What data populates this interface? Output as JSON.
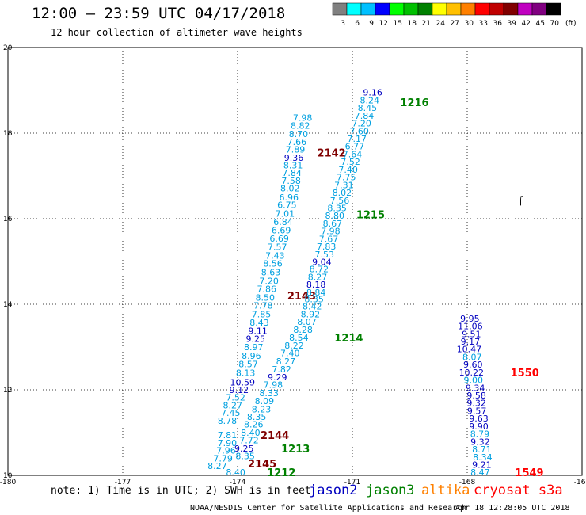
{
  "header": {
    "title": "12:00 – 23:59 UTC 04/17/2018",
    "subtitle": "12 hour collection of altimeter wave heights"
  },
  "colorbar": {
    "colors": [
      "#808080",
      "#00ffff",
      "#00c0ff",
      "#0000ff",
      "#00ff00",
      "#00c000",
      "#008000",
      "#ffff00",
      "#ffc000",
      "#ff8000",
      "#ff0000",
      "#c00000",
      "#800000",
      "#c000c0",
      "#800080",
      "#000000"
    ],
    "labels": [
      "3",
      "6",
      "9",
      "12",
      "15",
      "18",
      "21",
      "24",
      "27",
      "30",
      "33",
      "36",
      "39",
      "42",
      "45",
      "70",
      "(ft)"
    ]
  },
  "footer": {
    "note": "note: 1) Time is in UTC; 2) SWH is in feet",
    "credit": "NOAA/NESDIS Center for Satellite Applications and Research",
    "timestamp": "Apr 18 12:28:05 UTC 2018",
    "missions": [
      {
        "name": "jason2",
        "color": "#0000c0"
      },
      {
        "name": "jason3",
        "color": "#008000"
      },
      {
        "name": "altika",
        "color": "#ff8000"
      },
      {
        "name": "cryosat s3a",
        "color": "#ff0000"
      }
    ]
  },
  "chart_data": {
    "type": "scatter",
    "xlim": [
      -180,
      -165
    ],
    "ylim": [
      10,
      20
    ],
    "xticks": [
      "-180",
      "-177",
      "-174",
      "-171",
      "-168",
      "-165"
    ],
    "yticks": [
      "10",
      "12",
      "14",
      "16",
      "18",
      "20"
    ],
    "grid": true,
    "tracks": [
      {
        "name": "2145-2142",
        "points": [
          {
            "lon": -174.53,
            "lat": 10.22,
            "swh": "8.27",
            "color": "#00a0e0"
          },
          {
            "lon": -174.38,
            "lat": 10.4,
            "swh": "7.79",
            "color": "#00a0e0"
          },
          {
            "lon": -174.3,
            "lat": 10.58,
            "swh": "7.96",
            "color": "#00a0e0"
          },
          {
            "lon": -174.27,
            "lat": 10.76,
            "swh": "7.90",
            "color": "#00a0e0"
          },
          {
            "lon": -174.27,
            "lat": 10.94,
            "swh": "7.81",
            "color": "#00a0e0"
          },
          {
            "lon": -174.27,
            "lat": 11.28,
            "swh": "8.78",
            "color": "#00a0e0"
          },
          {
            "lon": -174.18,
            "lat": 11.46,
            "swh": "7.45",
            "color": "#00a0e0"
          },
          {
            "lon": -174.13,
            "lat": 11.64,
            "swh": "8.27",
            "color": "#00a0e0"
          },
          {
            "lon": -174.05,
            "lat": 11.82,
            "swh": "7.52",
            "color": "#00a0e0"
          },
          {
            "lon": -173.96,
            "lat": 12.0,
            "swh": "9.12",
            "color": "#0000c0"
          },
          {
            "lon": -173.87,
            "lat": 12.18,
            "swh": "10.59",
            "color": "#0000c0"
          },
          {
            "lon": -173.79,
            "lat": 12.4,
            "swh": "8.13",
            "color": "#00a0e0"
          },
          {
            "lon": -173.72,
            "lat": 12.6,
            "swh": "8.57",
            "color": "#00a0e0"
          },
          {
            "lon": -173.64,
            "lat": 12.8,
            "swh": "8.96",
            "color": "#00a0e0"
          },
          {
            "lon": -173.58,
            "lat": 13.0,
            "swh": "8.97",
            "color": "#00a0e0"
          },
          {
            "lon": -173.53,
            "lat": 13.19,
            "swh": "9.25",
            "color": "#0000c0"
          },
          {
            "lon": -173.47,
            "lat": 13.38,
            "swh": "9.11",
            "color": "#0000c0"
          },
          {
            "lon": -173.43,
            "lat": 13.57,
            "swh": "8.43",
            "color": "#00a0e0"
          },
          {
            "lon": -173.38,
            "lat": 13.77,
            "swh": "7.85",
            "color": "#00a0e0"
          },
          {
            "lon": -173.33,
            "lat": 13.97,
            "swh": "7.78",
            "color": "#00a0e0"
          },
          {
            "lon": -173.28,
            "lat": 14.16,
            "swh": "8.50",
            "color": "#00a0e0"
          },
          {
            "lon": -173.24,
            "lat": 14.36,
            "swh": "7.86",
            "color": "#00a0e0"
          },
          {
            "lon": -173.18,
            "lat": 14.55,
            "swh": "7.20",
            "color": "#00a0e0"
          },
          {
            "lon": -173.13,
            "lat": 14.75,
            "swh": "8.63",
            "color": "#00a0e0"
          },
          {
            "lon": -173.08,
            "lat": 14.95,
            "swh": "8.56",
            "color": "#00a0e0"
          },
          {
            "lon": -173.02,
            "lat": 15.14,
            "swh": "7.43",
            "color": "#00a0e0"
          },
          {
            "lon": -172.96,
            "lat": 15.34,
            "swh": "7.57",
            "color": "#00a0e0"
          },
          {
            "lon": -172.91,
            "lat": 15.54,
            "swh": "6.69",
            "color": "#00a0e0"
          },
          {
            "lon": -172.86,
            "lat": 15.73,
            "swh": "6.69",
            "color": "#00a0e0"
          },
          {
            "lon": -172.81,
            "lat": 15.93,
            "swh": "6.84",
            "color": "#00a0e0"
          },
          {
            "lon": -172.76,
            "lat": 16.12,
            "swh": "7.01",
            "color": "#00a0e0"
          },
          {
            "lon": -172.71,
            "lat": 16.32,
            "swh": "6.75",
            "color": "#00a0e0"
          },
          {
            "lon": -172.66,
            "lat": 16.5,
            "swh": "6.96",
            "color": "#00a0e0"
          },
          {
            "lon": -172.63,
            "lat": 16.71,
            "swh": "8.02",
            "color": "#00a0e0"
          },
          {
            "lon": -172.6,
            "lat": 16.89,
            "swh": "7.58",
            "color": "#00a0e0"
          },
          {
            "lon": -172.58,
            "lat": 17.07,
            "swh": "7.84",
            "color": "#00a0e0"
          },
          {
            "lon": -172.55,
            "lat": 17.25,
            "swh": "8.31",
            "color": "#00a0e0"
          },
          {
            "lon": -172.53,
            "lat": 17.43,
            "swh": "9.36",
            "color": "#0000c0"
          },
          {
            "lon": -172.49,
            "lat": 17.62,
            "swh": "7.89",
            "color": "#00a0e0"
          },
          {
            "lon": -172.45,
            "lat": 17.8,
            "swh": "7.66",
            "color": "#00a0e0"
          },
          {
            "lon": -172.41,
            "lat": 17.98,
            "swh": "8.70",
            "color": "#00a0e0"
          },
          {
            "lon": -172.36,
            "lat": 18.18,
            "swh": "8.82",
            "color": "#00a0e0"
          },
          {
            "lon": -172.3,
            "lat": 18.36,
            "swh": "7.98",
            "color": "#00a0e0"
          }
        ],
        "time_labels": [
          {
            "lon": -173.73,
            "lat": 10.28,
            "text": "2145",
            "color": "#800000"
          },
          {
            "lon": -173.4,
            "lat": 10.94,
            "text": "2144",
            "color": "#800000"
          },
          {
            "lon": -172.7,
            "lat": 14.2,
            "text": "2143",
            "color": "#800000"
          },
          {
            "lon": -171.92,
            "lat": 17.55,
            "text": "2142",
            "color": "#800000"
          }
        ]
      },
      {
        "name": "1212-1216",
        "points": [
          {
            "lon": -174.05,
            "lat": 10.07,
            "swh": "8.40",
            "color": "#00a0e0"
          },
          {
            "lon": -173.8,
            "lat": 10.45,
            "swh": "8.35",
            "color": "#00a0e0"
          },
          {
            "lon": -173.83,
            "lat": 10.63,
            "swh": "9.25",
            "color": "#0000c0"
          },
          {
            "lon": -173.7,
            "lat": 10.82,
            "swh": "7.72",
            "color": "#00a0e0"
          },
          {
            "lon": -173.66,
            "lat": 11.0,
            "swh": "8.40",
            "color": "#00a0e0"
          },
          {
            "lon": -173.58,
            "lat": 11.19,
            "swh": "8.26",
            "color": "#00a0e0"
          },
          {
            "lon": -173.5,
            "lat": 11.37,
            "swh": "8.35",
            "color": "#00a0e0"
          },
          {
            "lon": -173.38,
            "lat": 11.55,
            "swh": "8.23",
            "color": "#00a0e0"
          },
          {
            "lon": -173.3,
            "lat": 11.74,
            "swh": "8.09",
            "color": "#00a0e0"
          },
          {
            "lon": -173.18,
            "lat": 11.93,
            "swh": "8.33",
            "color": "#00a0e0"
          },
          {
            "lon": -173.07,
            "lat": 12.12,
            "swh": "7.98",
            "color": "#00a0e0"
          },
          {
            "lon": -172.96,
            "lat": 12.3,
            "swh": "9.29",
            "color": "#0000c0"
          },
          {
            "lon": -172.85,
            "lat": 12.48,
            "swh": "7.82",
            "color": "#00a0e0"
          },
          {
            "lon": -172.74,
            "lat": 12.67,
            "swh": "8.27",
            "color": "#00a0e0"
          },
          {
            "lon": -172.63,
            "lat": 12.86,
            "swh": "7.40",
            "color": "#00a0e0"
          },
          {
            "lon": -172.52,
            "lat": 13.04,
            "swh": "8.22",
            "color": "#00a0e0"
          },
          {
            "lon": -172.4,
            "lat": 13.22,
            "swh": "8.54",
            "color": "#00a0e0"
          },
          {
            "lon": -172.29,
            "lat": 13.41,
            "swh": "8.28",
            "color": "#00a0e0"
          },
          {
            "lon": -172.19,
            "lat": 13.59,
            "swh": "8.07",
            "color": "#00a0e0"
          },
          {
            "lon": -172.1,
            "lat": 13.77,
            "swh": "8.92",
            "color": "#00a0e0"
          },
          {
            "lon": -172.05,
            "lat": 13.95,
            "swh": "8.42",
            "color": "#00a0e0"
          },
          {
            "lon": -172.0,
            "lat": 14.12,
            "swh": "8.35",
            "color": "#00a0e0"
          },
          {
            "lon": -171.95,
            "lat": 14.28,
            "swh": "8.84",
            "color": "#00a0e0"
          },
          {
            "lon": -171.95,
            "lat": 14.46,
            "swh": "8.18",
            "color": "#0000c0"
          },
          {
            "lon": -171.91,
            "lat": 14.64,
            "swh": "8.27",
            "color": "#00a0e0"
          },
          {
            "lon": -171.87,
            "lat": 14.82,
            "swh": "8.72",
            "color": "#00a0e0"
          },
          {
            "lon": -171.8,
            "lat": 14.99,
            "swh": "9.04",
            "color": "#0000c0"
          },
          {
            "lon": -171.73,
            "lat": 15.17,
            "swh": "7.53",
            "color": "#00a0e0"
          },
          {
            "lon": -171.68,
            "lat": 15.35,
            "swh": "7.83",
            "color": "#00a0e0"
          },
          {
            "lon": -171.62,
            "lat": 15.53,
            "swh": "7.67",
            "color": "#00a0e0"
          },
          {
            "lon": -171.57,
            "lat": 15.71,
            "swh": "7.98",
            "color": "#00a0e0"
          },
          {
            "lon": -171.52,
            "lat": 15.89,
            "swh": "8.67",
            "color": "#00a0e0"
          },
          {
            "lon": -171.46,
            "lat": 16.07,
            "swh": "8.80",
            "color": "#00a0e0"
          },
          {
            "lon": -171.4,
            "lat": 16.25,
            "swh": "8.35",
            "color": "#00a0e0"
          },
          {
            "lon": -171.33,
            "lat": 16.43,
            "swh": "7.56",
            "color": "#00a0e0"
          },
          {
            "lon": -171.27,
            "lat": 16.61,
            "swh": "8.02",
            "color": "#00a0e0"
          },
          {
            "lon": -171.22,
            "lat": 16.79,
            "swh": "7.31",
            "color": "#00a0e0"
          },
          {
            "lon": -171.16,
            "lat": 16.97,
            "swh": "7.75",
            "color": "#00a0e0"
          },
          {
            "lon": -171.11,
            "lat": 17.15,
            "swh": "7.40",
            "color": "#00a0e0"
          },
          {
            "lon": -171.05,
            "lat": 17.33,
            "swh": "7.52",
            "color": "#00a0e0"
          },
          {
            "lon": -171.0,
            "lat": 17.51,
            "swh": "7.64",
            "color": "#00a0e0"
          },
          {
            "lon": -170.94,
            "lat": 17.69,
            "swh": "6.77",
            "color": "#00a0e0"
          },
          {
            "lon": -170.88,
            "lat": 17.87,
            "swh": "7.17",
            "color": "#00a0e0"
          },
          {
            "lon": -170.82,
            "lat": 18.05,
            "swh": "7.60",
            "color": "#00a0e0"
          },
          {
            "lon": -170.76,
            "lat": 18.23,
            "swh": "7.20",
            "color": "#00a0e0"
          },
          {
            "lon": -170.69,
            "lat": 18.41,
            "swh": "7.84",
            "color": "#00a0e0"
          },
          {
            "lon": -170.61,
            "lat": 18.59,
            "swh": "8.45",
            "color": "#00a0e0"
          },
          {
            "lon": -170.55,
            "lat": 18.77,
            "swh": "8.24",
            "color": "#00a0e0"
          },
          {
            "lon": -170.47,
            "lat": 18.95,
            "swh": "9.16",
            "color": "#0000c0"
          }
        ],
        "time_labels": [
          {
            "lon": -173.23,
            "lat": 10.07,
            "text": "1212",
            "color": "#008000"
          },
          {
            "lon": -172.86,
            "lat": 10.63,
            "text": "1213",
            "color": "#008000"
          },
          {
            "lon": -171.47,
            "lat": 13.22,
            "text": "1214",
            "color": "#008000"
          },
          {
            "lon": -170.9,
            "lat": 16.1,
            "text": "1215",
            "color": "#008000"
          },
          {
            "lon": -169.75,
            "lat": 18.72,
            "text": "1216",
            "color": "#008000"
          }
        ]
      },
      {
        "name": "1550-1549",
        "points": [
          {
            "lon": -167.66,
            "lat": 10.07,
            "swh": "8.47",
            "color": "#00a0e0"
          },
          {
            "lon": -167.62,
            "lat": 10.25,
            "swh": "9.21",
            "color": "#0000c0"
          },
          {
            "lon": -167.6,
            "lat": 10.43,
            "swh": "8.34",
            "color": "#00a0e0"
          },
          {
            "lon": -167.62,
            "lat": 10.61,
            "swh": "8.71",
            "color": "#00a0e0"
          },
          {
            "lon": -167.66,
            "lat": 10.79,
            "swh": "9.32",
            "color": "#0000c0"
          },
          {
            "lon": -167.67,
            "lat": 10.97,
            "swh": "8.79",
            "color": "#00a0e0"
          },
          {
            "lon": -167.7,
            "lat": 11.15,
            "swh": "9.90",
            "color": "#0000c0"
          },
          {
            "lon": -167.7,
            "lat": 11.33,
            "swh": "9.63",
            "color": "#0000c0"
          },
          {
            "lon": -167.75,
            "lat": 11.51,
            "swh": "9.57",
            "color": "#0000c0"
          },
          {
            "lon": -167.76,
            "lat": 11.69,
            "swh": "9.32",
            "color": "#0000c0"
          },
          {
            "lon": -167.76,
            "lat": 11.87,
            "swh": "9.58",
            "color": "#0000c0"
          },
          {
            "lon": -167.79,
            "lat": 12.05,
            "swh": "9.34",
            "color": "#0000c0"
          },
          {
            "lon": -167.84,
            "lat": 12.23,
            "swh": "9.00",
            "color": "#00a0e0"
          },
          {
            "lon": -167.89,
            "lat": 12.41,
            "swh": "10.22",
            "color": "#0000c0"
          },
          {
            "lon": -167.85,
            "lat": 12.59,
            "swh": "9.60",
            "color": "#0000c0"
          },
          {
            "lon": -167.87,
            "lat": 12.77,
            "swh": "8.07",
            "color": "#00a0e0"
          },
          {
            "lon": -167.95,
            "lat": 12.95,
            "swh": "10.47",
            "color": "#0000c0"
          },
          {
            "lon": -167.92,
            "lat": 13.13,
            "swh": "9.17",
            "color": "#0000c0"
          },
          {
            "lon": -167.89,
            "lat": 13.31,
            "swh": "9.51",
            "color": "#0000c0"
          },
          {
            "lon": -167.92,
            "lat": 13.49,
            "swh": "11.06",
            "color": "#0000c0"
          },
          {
            "lon": -167.93,
            "lat": 13.67,
            "swh": "9.95",
            "color": "#0000c0"
          }
        ],
        "time_labels": [
          {
            "lon": -166.75,
            "lat": 10.07,
            "text": "1549",
            "color": "#ff0000"
          },
          {
            "lon": -166.87,
            "lat": 12.41,
            "text": "1550",
            "color": "#ff0000"
          }
        ]
      }
    ],
    "markers": [
      {
        "lon": -166.6,
        "lat": 16.43,
        "text": "⌠"
      }
    ]
  }
}
